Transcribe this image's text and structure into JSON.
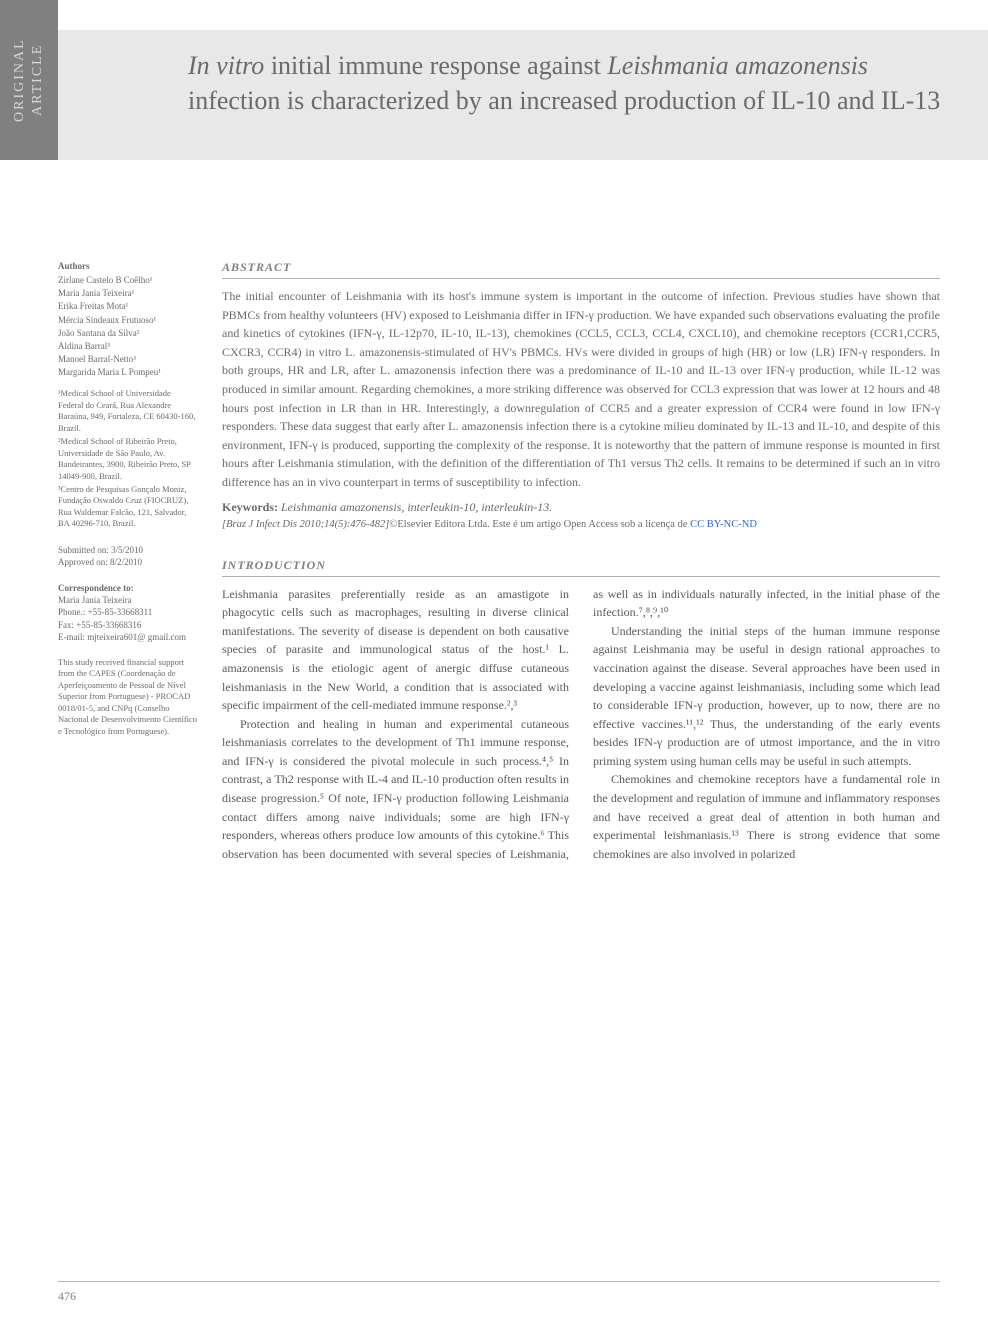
{
  "sideTab": "ORIGINAL ARTICLE",
  "title": {
    "pre": "In vitro",
    "mid1": " initial immune response against ",
    "ital2": "Leishmania amazonensis",
    "mid2": " infection is characterized by an increased production of IL-10 and IL-13"
  },
  "authorsHeader": "Authors",
  "authors": [
    "Zirlane Castelo B Coêlho¹",
    "Maria Jania Teixeira¹",
    "Erika Freitas Mota¹",
    "Mércia Sindeaux Frutuoso¹",
    "João Santana da Silva²",
    "Aldina Barral³",
    "Manoel Barral-Netto³",
    "Margarida Maria L Pompeu¹"
  ],
  "affiliations": [
    "¹Medical School of Universidade Federal do Ceará, Rua Alexandre Baraúna, 949, Fortaleza, CE 60430-160, Brazil.",
    "²Medical School of Ribeirão Preto, Universidade de São Paulo, Av. Bandeirantes, 3900, Ribeirão Preto, SP 14049-900, Brazil.",
    "³Centro de Pesquisas Gonçalo Moniz, Fundação Oswaldo Cruz (FIOCRUZ), Rua Waldemar Falcão, 121, Salvador, BA 40296-710, Brazil."
  ],
  "submitted": "Submitted on: 3/5/2010",
  "approved": "Approved on: 8/2/2010",
  "correspondence": {
    "hdr": "Correspondence to:",
    "name": "Maria Jania Teixeira",
    "phone": "Phone.: +55-85-33668311",
    "fax": "Fax: +55-85-33668316",
    "email": "E-mail: mjteixeira601@ gmail.com"
  },
  "funding": "This study received financial support from the CAPES (Coordenação de Aperfeiçoamento de Pessoal de Nível Superior from Portuguese) - PROCAD 0018/01-5, and CNPq (Conselho Nacional de Desenvolvimento Científico e Tecnológico from Portuguese).",
  "abstractHdr": "ABSTRACT",
  "abstractText": "The initial encounter of Leishmania with its host's immune system is important in the outcome of infection. Previous studies have shown that PBMCs from healthy volunteers (HV) exposed to Leishmania differ in IFN-γ production. We have expanded such observations evaluating the profile and kinetics of cytokines (IFN-γ, IL-12p70, IL-10, IL-13), chemokines (CCL5, CCL3, CCL4, CXCL10), and chemokine receptors (CCR1,CCR5, CXCR3, CCR4) in vitro L. amazonensis-stimulated of HV's PBMCs. HVs were divided in groups of high (HR) or low (LR) IFN-γ responders. In both groups, HR and LR, after L. amazonensis infection there was a predominance of IL-10 and IL-13 over IFN-γ production, while IL-12 was produced in similar amount. Regarding chemokines, a more striking difference was observed for CCL3 expression that was lower at 12 hours and 48 hours post infection in LR than in HR. Interestingly, a downregulation of CCR5 and a greater expression of CCR4 were found in low IFN-γ responders. These data suggest that early after L. amazonensis infection there is a cytokine milieu dominated by IL-13 and IL-10, and despite of this environment, IFN-γ is produced, supporting the complexity of the response. It is noteworthy that the pattern of immune response is mounted in first hours after Leishmania stimulation, with the definition of the differentiation of Th1 versus Th2 cells. It remains to be determined if such an in vitro difference has an in vivo counterpart in terms of susceptibility to infection.",
  "keywordsLabel": "Keywords:",
  "keywordsText": " Leishmania amazonensis, interleukin-10, interleukin-13.",
  "citation": {
    "journal": "[Braz J Infect Dis 2010;14(5):476-482]",
    "publisher": "©Elsevier Editora Ltda. ",
    "openaccess": "Este é um artigo Open Access sob a licença de ",
    "link": "CC BY-NC-ND"
  },
  "introHdr": "INTRODUCTION",
  "introParas": [
    "Leishmania parasites preferentially reside as an amastigote in phagocytic cells such as macrophages, resulting in diverse clinical manifestations. The severity of disease is dependent on both causative species of parasite and immunological status of the host.¹ L. amazonensis is the etiologic agent of anergic diffuse cutaneous leishmaniasis in the New World, a condition that is associated with specific impairment of the cell-mediated immune response.²,³",
    "Protection and healing in human and experimental cutaneous leishmaniasis correlates to the development of Th1 immune response, and IFN-γ is considered the pivotal molecule in such process.⁴,⁵ In contrast, a Th2 response with IL-4 and IL-10 production often results in disease progression.⁵ Of note, IFN-γ production following Leishmania contact differs among naive individuals; some are high IFN-γ responders, whereas others produce low amounts of this cytokine.⁶ This observation has been documented with several species of Leishmania, as well as in individuals naturally infected, in the initial phase of the infection.⁷,⁸,⁹,¹⁰",
    "Understanding the initial steps of the human immune response against Leishmania may be useful in design rational approaches to vaccination against the disease. Several approaches have been used in developing a vaccine against leishmaniasis, including some which lead to considerable IFN-γ production, however, up to now, there are no effective vaccines.¹¹,¹² Thus, the understanding of the early events besides IFN-γ production are of utmost importance, and the in vitro priming system using human cells may be useful in such attempts.",
    "Chemokines and chemokine receptors have a fundamental role in the development and regulation of immune and inflammatory responses and have received a great deal of attention in both human and experimental leishmaniasis.¹³ There is strong evidence that some chemokines are also involved in polarized"
  ],
  "pageNumber": "476",
  "colors": {
    "sideTabBg": "#808080",
    "sideTabText": "#d8d8d8",
    "titleBandBg": "#e8e8e8",
    "titleText": "#6a6a6a",
    "bodyText": "#5a5a5a",
    "ruleColor": "#b0b0b0",
    "linkColor": "#3366cc"
  },
  "typography": {
    "titleFontSize": 26,
    "bodyFontSize": 12,
    "sidebarFontSize": 9,
    "sectionHdrFontSize": 12,
    "citationFontSize": 10.5
  },
  "layout": {
    "pageWidth": 988,
    "pageHeight": 1320,
    "sideTabWidth": 58,
    "leftColWidth": 140,
    "columnGap": 24
  }
}
